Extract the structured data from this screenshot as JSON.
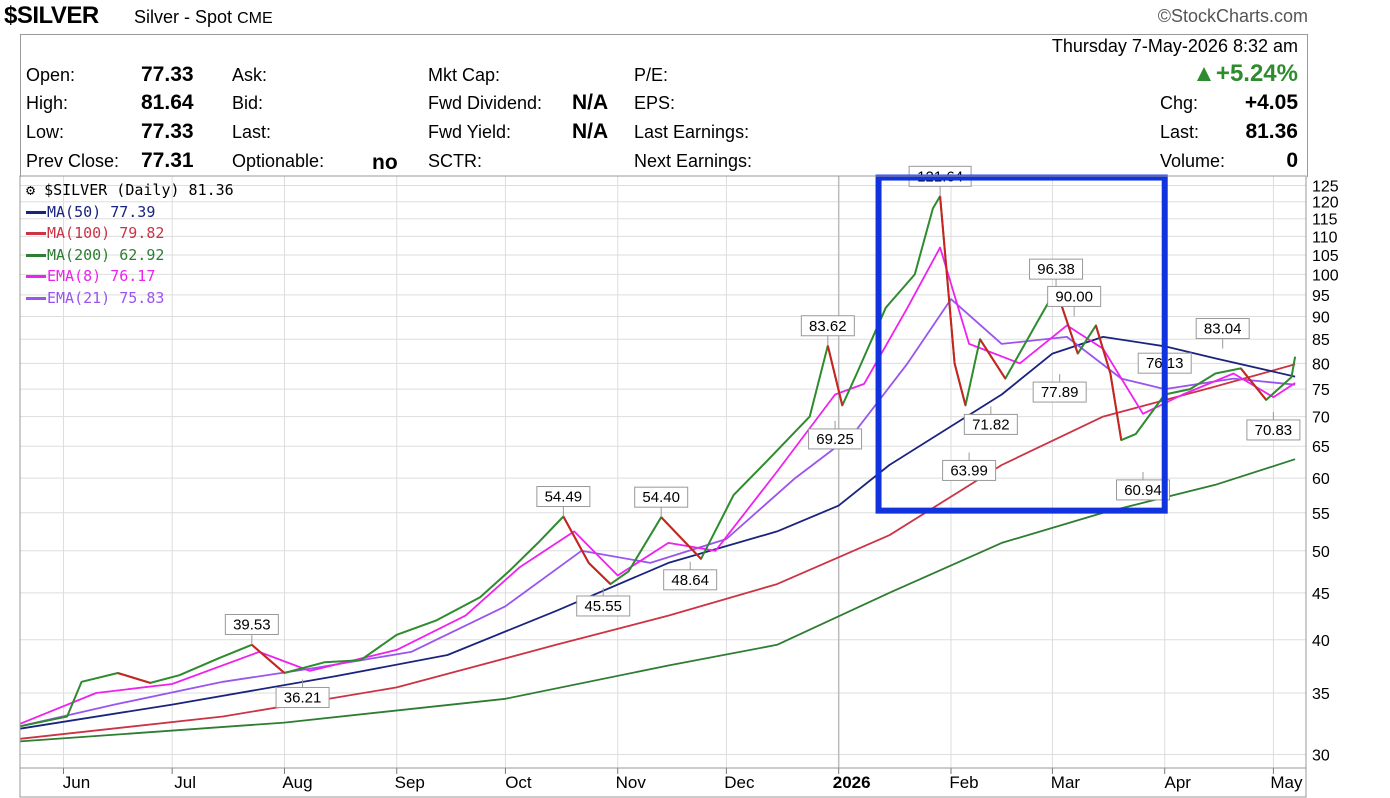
{
  "header": {
    "ticker": "$SILVER",
    "name": "Silver - Spot",
    "exchange": "CME",
    "brand": "©StockCharts.com",
    "datetime": "Thursday  7-May-2026  8:32 am"
  },
  "quote": {
    "open_label": "Open:",
    "open": "77.33",
    "high_label": "High:",
    "high": "81.64",
    "low_label": "Low:",
    "low": "77.33",
    "prev_close_label": "Prev Close:",
    "prev_close": "77.31",
    "ask_label": "Ask:",
    "bid_label": "Bid:",
    "last_label_mid": "Last:",
    "optionable_label": "Optionable:",
    "optionable": "no",
    "mkt_cap_label": "Mkt Cap:",
    "fwd_dividend_label": "Fwd Dividend:",
    "fwd_dividend": "N/A",
    "fwd_yield_label": "Fwd Yield:",
    "fwd_yield": "N/A",
    "sctr_label": "SCTR:",
    "pe_label": "P/E:",
    "eps_label": "EPS:",
    "last_earnings_label": "Last Earnings:",
    "next_earnings_label": "Next Earnings:",
    "change_pct": "▲+5.24%",
    "chg_label": "Chg:",
    "chg": "+4.05",
    "last_label": "Last:",
    "last": "81.36",
    "volume_label": "Volume:",
    "volume": "0"
  },
  "legend": {
    "price": "$SILVER (Daily) 81.36",
    "ma50": "MA(50) 77.39",
    "ma100": "MA(100) 79.82",
    "ma200": "MA(200) 62.92",
    "ema8": "EMA(8) 76.17",
    "ema21": "EMA(21) 75.83"
  },
  "colors": {
    "up": "#2e8b2e",
    "down": "#cc2222",
    "ma50": "#1a237e",
    "ma100": "#cc3344",
    "ma200": "#2e7d32",
    "ema8": "#ee22ee",
    "ema21": "#9955ee",
    "box": "#1133dd"
  },
  "chart_data": {
    "type": "line",
    "scale": "log",
    "ylim": [
      29,
      128
    ],
    "y_ticks": [
      30,
      35,
      40,
      45,
      50,
      55,
      60,
      65,
      70,
      75,
      80,
      85,
      90,
      95,
      100,
      105,
      110,
      115,
      120,
      125
    ],
    "x_ticks": [
      "Jun",
      "Jul",
      "Aug",
      "Sep",
      "Oct",
      "Nov",
      "Dec",
      "2026",
      "Feb",
      "Mar",
      "Apr",
      "May"
    ],
    "grid": true,
    "legend_position": "top-left",
    "series": [
      {
        "name": "$SILVER (Daily)",
        "key": "price",
        "points": [
          [
            "2025-05-20",
            32.2
          ],
          [
            "2025-06-02",
            33.0
          ],
          [
            "2025-06-06",
            36.0
          ],
          [
            "2025-06-16",
            36.8
          ],
          [
            "2025-06-25",
            35.9
          ],
          [
            "2025-07-03",
            36.6
          ],
          [
            "2025-07-14",
            38.2
          ],
          [
            "2025-07-23",
            39.5
          ],
          [
            "2025-08-01",
            36.8
          ],
          [
            "2025-08-12",
            37.8
          ],
          [
            "2025-08-22",
            38.0
          ],
          [
            "2025-09-01",
            40.5
          ],
          [
            "2025-09-12",
            42.0
          ],
          [
            "2025-09-24",
            44.5
          ],
          [
            "2025-10-02",
            47.5
          ],
          [
            "2025-10-10",
            51.0
          ],
          [
            "2025-10-17",
            54.49
          ],
          [
            "2025-10-24",
            48.5
          ],
          [
            "2025-10-30",
            46.0
          ],
          [
            "2025-11-04",
            47.5
          ],
          [
            "2025-11-13",
            54.4
          ],
          [
            "2025-11-24",
            49.0
          ],
          [
            "2025-12-03",
            57.5
          ],
          [
            "2025-12-12",
            62.5
          ],
          [
            "2025-12-24",
            70.0
          ],
          [
            "2025-12-29",
            83.62
          ],
          [
            "2026-01-02",
            72.0
          ],
          [
            "2026-01-06",
            78.0
          ],
          [
            "2026-01-14",
            92.0
          ],
          [
            "2026-01-22",
            100.0
          ],
          [
            "2026-01-27",
            118.0
          ],
          [
            "2026-01-29",
            121.64
          ],
          [
            "2026-02-02",
            80.0
          ],
          [
            "2026-02-05",
            72.0
          ],
          [
            "2026-02-09",
            85.0
          ],
          [
            "2026-02-16",
            77.0
          ],
          [
            "2026-02-25",
            89.0
          ],
          [
            "2026-03-02",
            96.38
          ],
          [
            "2026-03-08",
            82.0
          ],
          [
            "2026-03-13",
            88.0
          ],
          [
            "2026-03-17",
            78.0
          ],
          [
            "2026-03-20",
            66.0
          ],
          [
            "2026-03-24",
            67.0
          ],
          [
            "2026-04-01",
            74.0
          ],
          [
            "2026-04-08",
            75.0
          ],
          [
            "2026-04-15",
            78.0
          ],
          [
            "2026-04-22",
            79.0
          ],
          [
            "2026-04-29",
            73.0
          ],
          [
            "2026-05-06",
            77.3
          ],
          [
            "2026-05-07",
            81.36
          ]
        ]
      },
      {
        "name": "MA(50)",
        "key": "ma50",
        "points": [
          [
            "2025-05-20",
            32.0
          ],
          [
            "2025-07-01",
            34.0
          ],
          [
            "2025-08-15",
            36.5
          ],
          [
            "2025-09-15",
            38.5
          ],
          [
            "2025-10-15",
            43.0
          ],
          [
            "2025-11-15",
            48.5
          ],
          [
            "2025-12-15",
            52.5
          ],
          [
            "2026-01-01",
            56.0
          ],
          [
            "2026-01-15",
            62.0
          ],
          [
            "2026-02-15",
            74.0
          ],
          [
            "2026-03-01",
            82.0
          ],
          [
            "2026-03-15",
            85.5
          ],
          [
            "2026-04-01",
            83.5
          ],
          [
            "2026-04-15",
            81.0
          ],
          [
            "2026-05-07",
            77.39
          ]
        ]
      },
      {
        "name": "MA(100)",
        "key": "ma100",
        "points": [
          [
            "2025-05-20",
            31.2
          ],
          [
            "2025-07-15",
            33.0
          ],
          [
            "2025-09-01",
            35.5
          ],
          [
            "2025-10-15",
            39.5
          ],
          [
            "2025-11-15",
            42.5
          ],
          [
            "2025-12-15",
            46.0
          ],
          [
            "2026-01-15",
            52.0
          ],
          [
            "2026-02-15",
            62.0
          ],
          [
            "2026-03-15",
            70.0
          ],
          [
            "2026-04-15",
            75.5
          ],
          [
            "2026-05-07",
            79.82
          ]
        ]
      },
      {
        "name": "MA(200)",
        "key": "ma200",
        "points": [
          [
            "2025-05-20",
            31.0
          ],
          [
            "2025-08-01",
            32.5
          ],
          [
            "2025-10-01",
            34.5
          ],
          [
            "2025-11-15",
            37.5
          ],
          [
            "2025-12-15",
            39.5
          ],
          [
            "2026-01-15",
            45.0
          ],
          [
            "2026-02-15",
            51.0
          ],
          [
            "2026-03-15",
            55.0
          ],
          [
            "2026-04-15",
            59.0
          ],
          [
            "2026-05-07",
            62.92
          ]
        ]
      },
      {
        "name": "EMA(8)",
        "key": "ema8",
        "points": [
          [
            "2025-05-20",
            32.4
          ],
          [
            "2025-06-10",
            35.0
          ],
          [
            "2025-07-01",
            35.8
          ],
          [
            "2025-07-25",
            38.8
          ],
          [
            "2025-08-08",
            37.0
          ],
          [
            "2025-09-01",
            39.0
          ],
          [
            "2025-09-20",
            42.5
          ],
          [
            "2025-10-05",
            48.0
          ],
          [
            "2025-10-20",
            52.5
          ],
          [
            "2025-11-01",
            47.0
          ],
          [
            "2025-11-15",
            51.0
          ],
          [
            "2025-11-28",
            50.0
          ],
          [
            "2025-12-15",
            61.0
          ],
          [
            "2025-12-31",
            74.0
          ],
          [
            "2026-01-08",
            76.0
          ],
          [
            "2026-01-20",
            92.0
          ],
          [
            "2026-01-29",
            107.0
          ],
          [
            "2026-02-06",
            84.0
          ],
          [
            "2026-02-20",
            80.0
          ],
          [
            "2026-03-05",
            88.0
          ],
          [
            "2026-03-15",
            83.0
          ],
          [
            "2026-03-26",
            70.5
          ],
          [
            "2026-04-06",
            74.0
          ],
          [
            "2026-04-20",
            78.0
          ],
          [
            "2026-05-01",
            73.5
          ],
          [
            "2026-05-07",
            76.17
          ]
        ]
      },
      {
        "name": "EMA(21)",
        "key": "ema21",
        "points": [
          [
            "2025-05-20",
            32.2
          ],
          [
            "2025-06-15",
            34.0
          ],
          [
            "2025-07-15",
            36.0
          ],
          [
            "2025-08-10",
            37.3
          ],
          [
            "2025-09-05",
            38.8
          ],
          [
            "2025-10-01",
            43.5
          ],
          [
            "2025-10-22",
            50.0
          ],
          [
            "2025-11-10",
            48.5
          ],
          [
            "2025-12-01",
            51.5
          ],
          [
            "2025-12-20",
            60.0
          ],
          [
            "2026-01-05",
            67.0
          ],
          [
            "2026-01-20",
            80.0
          ],
          [
            "2026-02-01",
            94.0
          ],
          [
            "2026-02-15",
            84.0
          ],
          [
            "2026-03-05",
            85.5
          ],
          [
            "2026-03-20",
            77.0
          ],
          [
            "2026-04-01",
            75.0
          ],
          [
            "2026-04-20",
            77.0
          ],
          [
            "2026-05-07",
            75.83
          ]
        ]
      }
    ],
    "annotations": [
      {
        "date": "2025-07-23",
        "value": 39.53,
        "label": "39.53",
        "pos": "above"
      },
      {
        "date": "2025-08-06",
        "value": 36.21,
        "label": "36.21",
        "pos": "below"
      },
      {
        "date": "2025-10-17",
        "value": 54.49,
        "label": "54.49",
        "pos": "above"
      },
      {
        "date": "2025-10-28",
        "value": 45.55,
        "label": "45.55",
        "pos": "below"
      },
      {
        "date": "2025-11-13",
        "value": 54.4,
        "label": "54.40",
        "pos": "above"
      },
      {
        "date": "2025-11-21",
        "value": 48.64,
        "label": "48.64",
        "pos": "below"
      },
      {
        "date": "2025-12-29",
        "value": 83.62,
        "label": "83.62",
        "pos": "above"
      },
      {
        "date": "2025-12-31",
        "value": 69.25,
        "label": "69.25",
        "pos": "below"
      },
      {
        "date": "2026-01-29",
        "value": 121.64,
        "label": "121.64",
        "pos": "above"
      },
      {
        "date": "2026-02-06",
        "value": 63.99,
        "label": "63.99",
        "pos": "below"
      },
      {
        "date": "2026-02-12",
        "value": 71.82,
        "label": "71.82",
        "pos": "below"
      },
      {
        "date": "2026-03-02",
        "value": 96.38,
        "label": "96.38",
        "pos": "above"
      },
      {
        "date": "2026-03-07",
        "value": 90.0,
        "label": "90.00",
        "pos": "above"
      },
      {
        "date": "2026-03-03",
        "value": 77.89,
        "label": "77.89",
        "pos": "below"
      },
      {
        "date": "2026-03-26",
        "value": 60.94,
        "label": "60.94",
        "pos": "below"
      },
      {
        "date": "2026-04-01",
        "value": 76.13,
        "label": "76.13",
        "pos": "above"
      },
      {
        "date": "2026-04-17",
        "value": 83.04,
        "label": "83.04",
        "pos": "above"
      },
      {
        "date": "2026-05-01",
        "value": 70.83,
        "label": "70.83",
        "pos": "below"
      }
    ],
    "highlight_box": {
      "x_start": "2026-01-12",
      "x_end": "2026-04-01",
      "y_low": 55.3,
      "y_high": 127.5
    }
  }
}
